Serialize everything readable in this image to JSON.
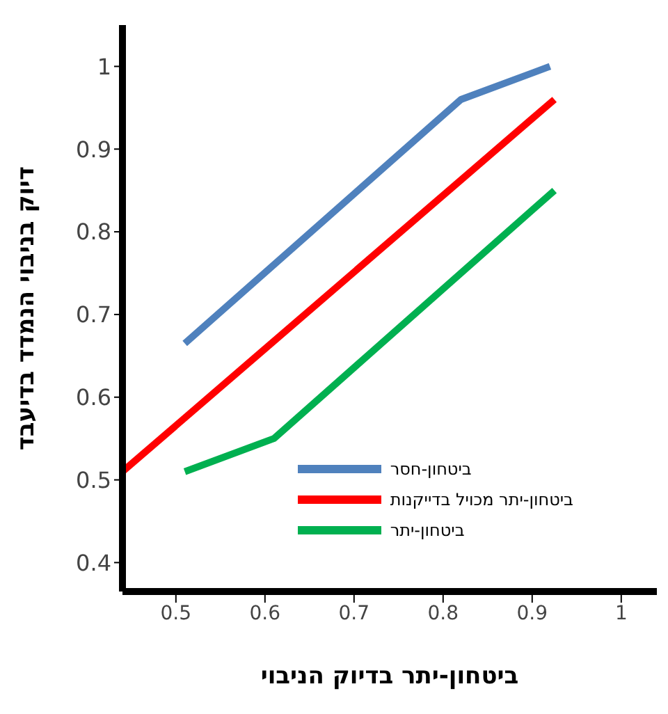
{
  "chart_data": {
    "type": "line",
    "xlabel": "ביטחון-יתר בדיוק הניבוי",
    "ylabel": "דיוק בניבוי הנמדד בדיעבד",
    "xlim": [
      0.44,
      1.04
    ],
    "xticks": [
      0.5,
      0.6,
      0.7,
      0.8,
      0.9,
      1
    ],
    "ylim": [
      0.365,
      1.05
    ],
    "yticks": [
      0.4,
      0.5,
      0.6,
      0.7,
      0.8,
      0.9,
      1
    ],
    "grid": false,
    "legend": "right",
    "marker": "none",
    "line_style": "solid",
    "series": [
      {
        "name": "ביטחון-חסר",
        "color": "#4f81bd",
        "x": [
          0.51,
          0.82,
          0.92
        ],
        "values": [
          0.665,
          0.96,
          1.0
        ]
      },
      {
        "name": "ביטחון-יתר מכויל בדייקנות",
        "color": "#ff0000",
        "x": [
          0.44,
          0.925
        ],
        "values": [
          0.51,
          0.96
        ]
      },
      {
        "name": "ביטחון-יתר",
        "color": "#00b050",
        "x": [
          0.51,
          0.61,
          0.925
        ],
        "values": [
          0.51,
          0.55,
          0.85
        ]
      }
    ]
  }
}
